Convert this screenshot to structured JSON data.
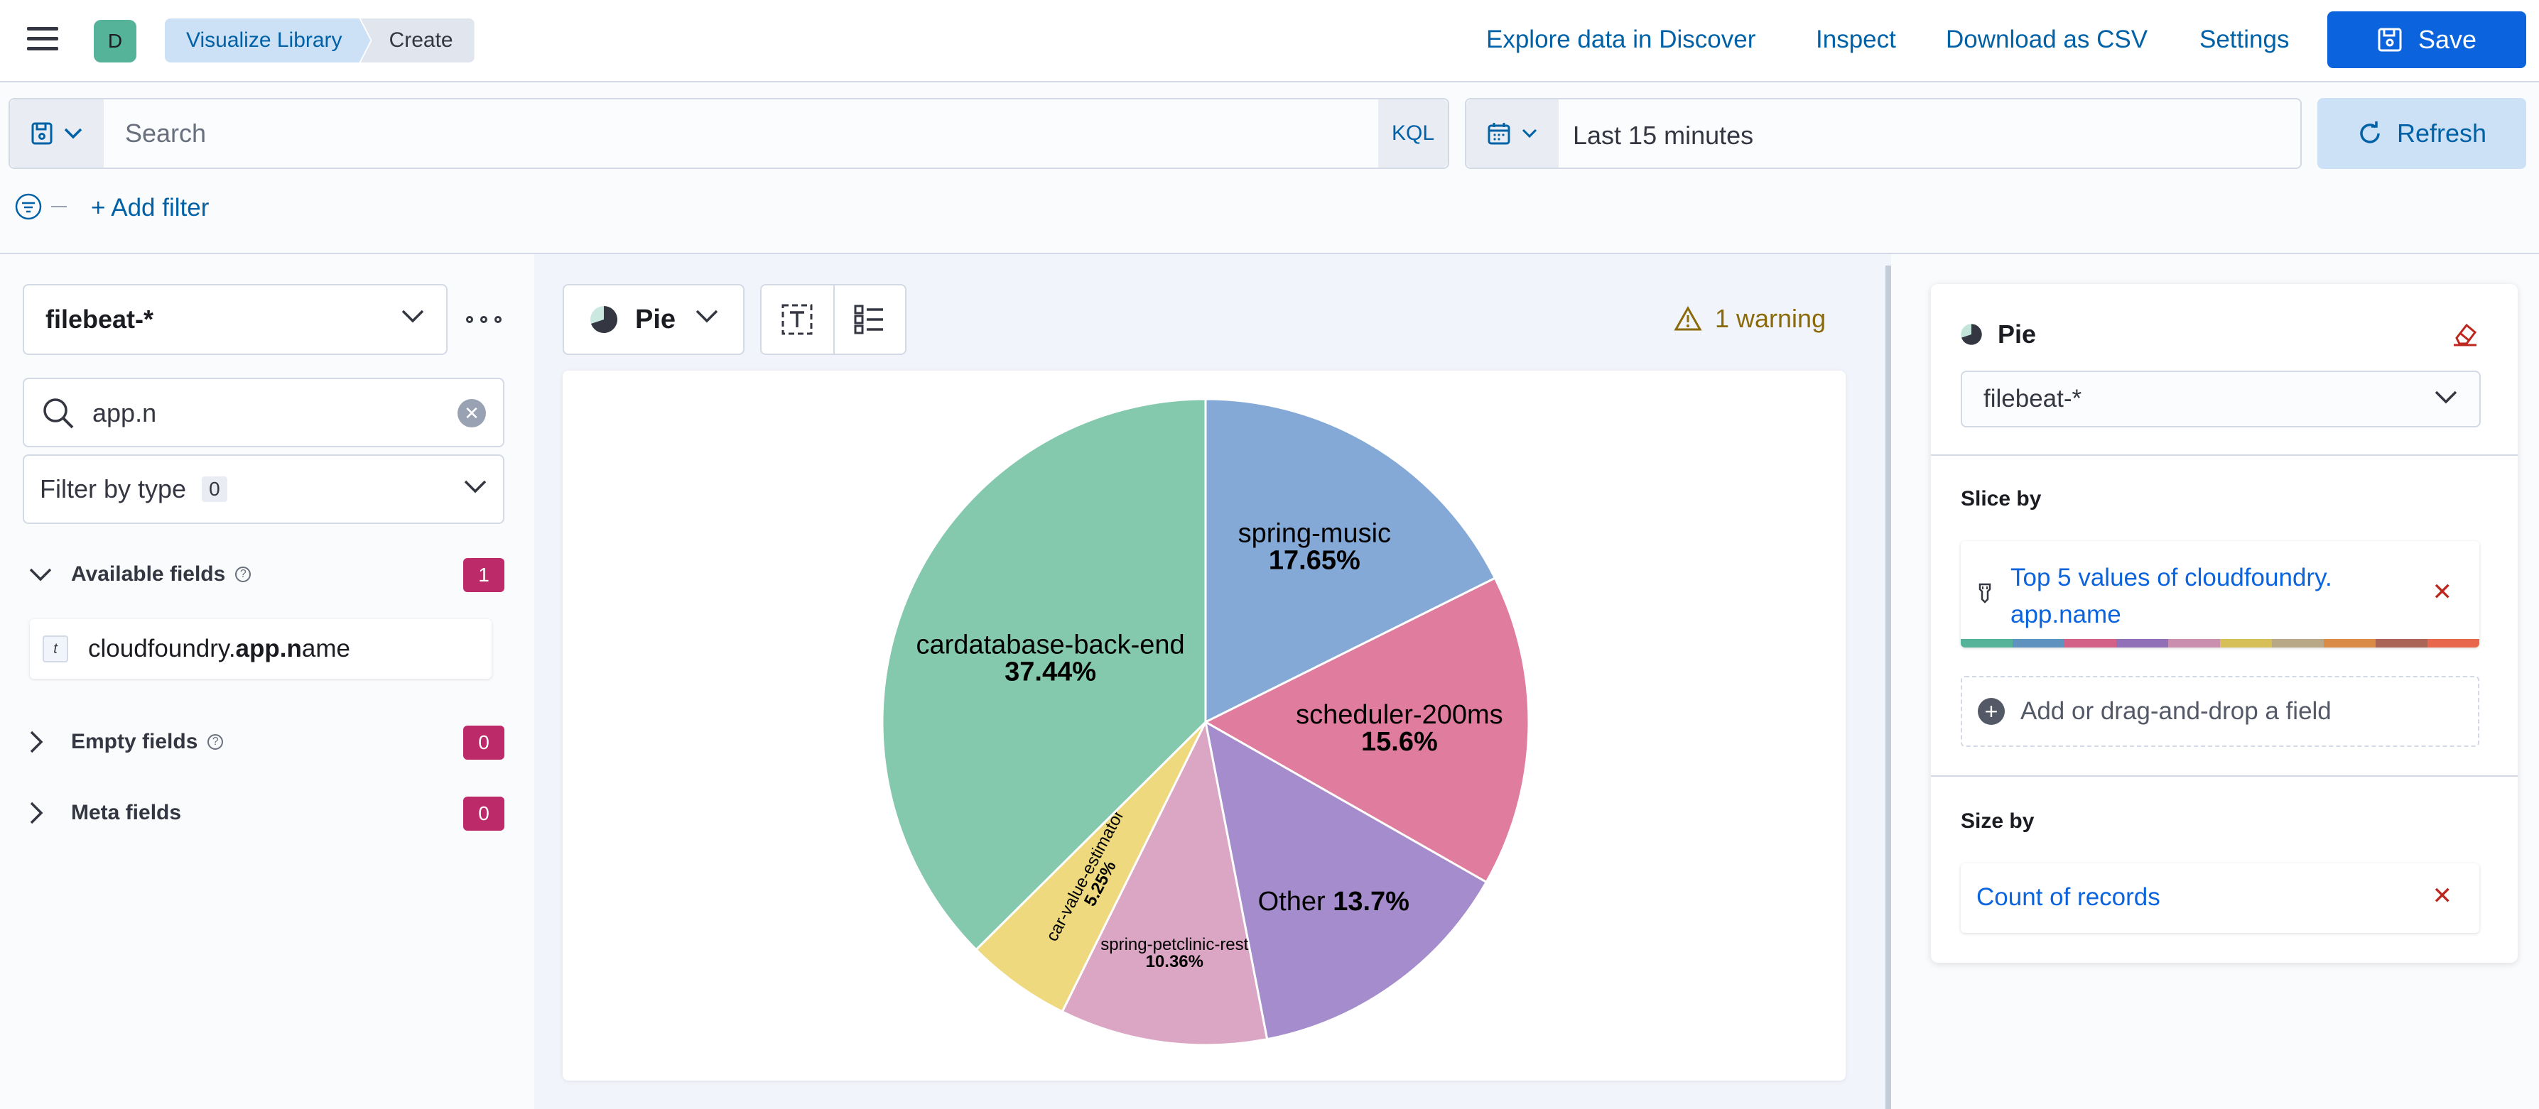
{
  "header": {
    "space_initial": "D",
    "breadcrumbs": [
      "Visualize Library",
      "Create"
    ],
    "links": [
      "Explore data in Discover",
      "Inspect",
      "Download as CSV",
      "Settings"
    ],
    "save_label": "Save"
  },
  "query": {
    "placeholder": "Search",
    "language": "KQL",
    "time_range": "Last 15 minutes",
    "refresh_label": "Refresh",
    "add_filter": "+ Add filter"
  },
  "sidebar": {
    "index_pattern": "filebeat-*",
    "field_search_value": "app.n",
    "filter_by_type_label": "Filter by type",
    "filter_by_type_count": "0",
    "available_fields": {
      "label": "Available fields",
      "count": "1"
    },
    "field": {
      "type": "t",
      "prefix": "cloudfoundry.",
      "match": "app.n",
      "suffix": "ame"
    },
    "empty_fields": {
      "label": "Empty fields",
      "count": "0"
    },
    "meta_fields": {
      "label": "Meta fields",
      "count": "0"
    }
  },
  "workspace": {
    "chart_type": "Pie",
    "warning": "1 warning"
  },
  "config_panel": {
    "title": "Pie",
    "index_pattern": "filebeat-*",
    "slice_by_label": "Slice by",
    "slice_dimension": "Top 5 values of cloudfoundry. app.name",
    "add_field_label": "Add or drag-and-drop a field",
    "size_by_label": "Size by",
    "size_dimension": "Count of records",
    "palette": [
      "#54b399",
      "#6092c0",
      "#d36086",
      "#9170b8",
      "#ca8eae",
      "#d6bf57",
      "#b9a888",
      "#da8b45",
      "#aa6556",
      "#e7664c"
    ]
  },
  "chart_data": {
    "type": "pie",
    "slices": [
      {
        "name": "spring-music",
        "label": "17.65%",
        "value": 17.65,
        "color": "#84a9d6"
      },
      {
        "name": "scheduler-200ms",
        "label": "15.6%",
        "value": 15.6,
        "color": "#e07c9e"
      },
      {
        "name": "Other",
        "label": "13.7%",
        "value": 13.7,
        "color": "#a58ccc"
      },
      {
        "name": "spring-petclinic-rest",
        "label": "10.36%",
        "value": 10.36,
        "color": "#dba6c4"
      },
      {
        "name": "car-value-estimator",
        "label": "5.25%",
        "value": 5.25,
        "color": "#eed97f"
      },
      {
        "name": "cardatabase-back-end",
        "label": "37.44%",
        "value": 37.44,
        "color": "#84c9ae"
      }
    ]
  }
}
